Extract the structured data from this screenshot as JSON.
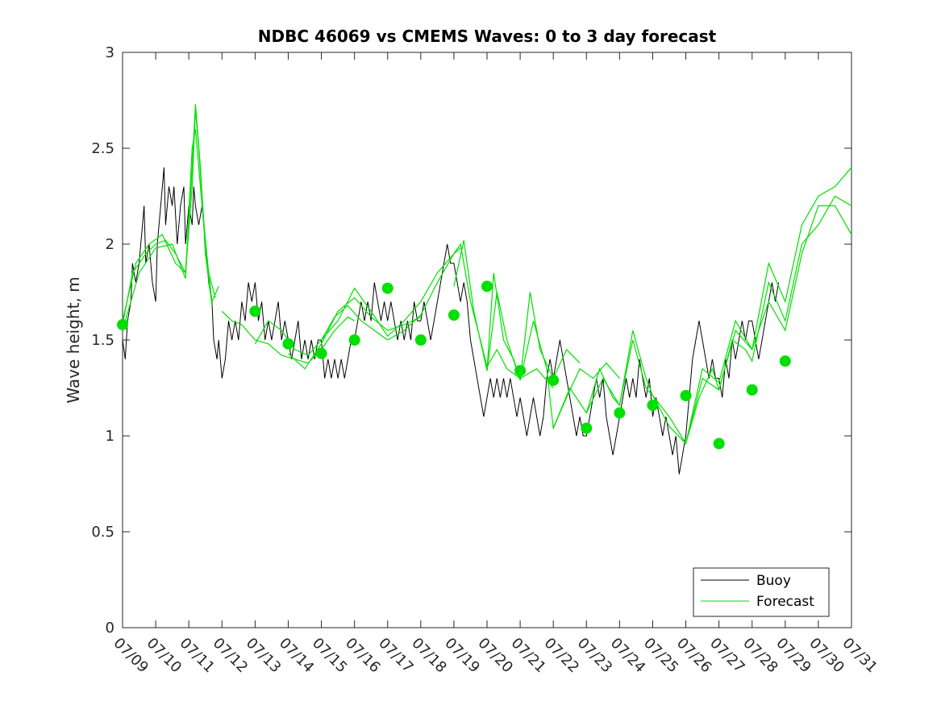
{
  "chart_data": {
    "type": "line",
    "title": "NDBC 46069 vs CMEMS Waves: 0 to 3 day forecast",
    "xlabel": "",
    "ylabel": "Wave height, m",
    "xlim": [
      0,
      22
    ],
    "ylim": [
      0,
      3
    ],
    "x_tick_labels": [
      "07/09",
      "07/10",
      "07/11",
      "07/12",
      "07/13",
      "07/14",
      "07/15",
      "07/16",
      "07/17",
      "07/18",
      "07/19",
      "07/20",
      "07/21",
      "07/22",
      "07/23",
      "07/24",
      "07/25",
      "07/26",
      "07/27",
      "07/28",
      "07/29",
      "07/30",
      "07/31"
    ],
    "y_ticks": [
      0,
      0.5,
      1,
      1.5,
      2,
      2.5,
      3
    ],
    "y_tick_labels": [
      "0",
      "0.5",
      "1",
      "1.5",
      "2",
      "2.5",
      "3"
    ],
    "grid": false,
    "legend": {
      "position": "bottom-right",
      "entries": [
        "Buoy",
        "Forecast"
      ]
    },
    "colors": {
      "buoy": "#000000",
      "forecast": "#00e000",
      "marker": "#00e000"
    },
    "buoy": [
      [
        0.0,
        1.5
      ],
      [
        0.08,
        1.4
      ],
      [
        0.15,
        1.6
      ],
      [
        0.25,
        1.7
      ],
      [
        0.3,
        1.9
      ],
      [
        0.4,
        1.8
      ],
      [
        0.5,
        1.9
      ],
      [
        0.6,
        2.1
      ],
      [
        0.65,
        2.2
      ],
      [
        0.7,
        1.9
      ],
      [
        0.8,
        2.0
      ],
      [
        0.9,
        1.8
      ],
      [
        1.0,
        1.7
      ],
      [
        1.05,
        2.0
      ],
      [
        1.15,
        2.2
      ],
      [
        1.25,
        2.4
      ],
      [
        1.3,
        2.1
      ],
      [
        1.4,
        2.3
      ],
      [
        1.5,
        2.2
      ],
      [
        1.55,
        2.3
      ],
      [
        1.65,
        2.0
      ],
      [
        1.75,
        2.2
      ],
      [
        1.85,
        2.3
      ],
      [
        1.9,
        2.0
      ],
      [
        2.0,
        2.2
      ],
      [
        2.1,
        2.1
      ],
      [
        2.15,
        2.3
      ],
      [
        2.2,
        2.2
      ],
      [
        2.3,
        2.1
      ],
      [
        2.4,
        2.2
      ],
      [
        2.5,
        2.0
      ],
      [
        2.6,
        1.8
      ],
      [
        2.7,
        1.7
      ],
      [
        2.75,
        1.5
      ],
      [
        2.85,
        1.4
      ],
      [
        2.9,
        1.5
      ],
      [
        3.0,
        1.3
      ],
      [
        3.1,
        1.4
      ],
      [
        3.2,
        1.6
      ],
      [
        3.3,
        1.5
      ],
      [
        3.4,
        1.6
      ],
      [
        3.5,
        1.5
      ],
      [
        3.6,
        1.7
      ],
      [
        3.7,
        1.6
      ],
      [
        3.8,
        1.8
      ],
      [
        3.9,
        1.7
      ],
      [
        4.0,
        1.8
      ],
      [
        4.1,
        1.6
      ],
      [
        4.2,
        1.7
      ],
      [
        4.3,
        1.5
      ],
      [
        4.4,
        1.6
      ],
      [
        4.5,
        1.5
      ],
      [
        4.6,
        1.6
      ],
      [
        4.7,
        1.7
      ],
      [
        4.8,
        1.5
      ],
      [
        4.9,
        1.6
      ],
      [
        5.0,
        1.5
      ],
      [
        5.1,
        1.4
      ],
      [
        5.2,
        1.5
      ],
      [
        5.3,
        1.6
      ],
      [
        5.4,
        1.4
      ],
      [
        5.5,
        1.5
      ],
      [
        5.6,
        1.4
      ],
      [
        5.7,
        1.5
      ],
      [
        5.8,
        1.4
      ],
      [
        5.9,
        1.5
      ],
      [
        6.0,
        1.5
      ],
      [
        6.1,
        1.3
      ],
      [
        6.2,
        1.4
      ],
      [
        6.3,
        1.3
      ],
      [
        6.4,
        1.4
      ],
      [
        6.5,
        1.3
      ],
      [
        6.6,
        1.4
      ],
      [
        6.7,
        1.3
      ],
      [
        6.8,
        1.4
      ],
      [
        6.9,
        1.5
      ],
      [
        7.0,
        1.5
      ],
      [
        7.1,
        1.6
      ],
      [
        7.2,
        1.7
      ],
      [
        7.3,
        1.6
      ],
      [
        7.4,
        1.7
      ],
      [
        7.5,
        1.6
      ],
      [
        7.6,
        1.8
      ],
      [
        7.7,
        1.7
      ],
      [
        7.8,
        1.6
      ],
      [
        7.9,
        1.7
      ],
      [
        8.0,
        1.6
      ],
      [
        8.1,
        1.7
      ],
      [
        8.2,
        1.6
      ],
      [
        8.3,
        1.5
      ],
      [
        8.4,
        1.6
      ],
      [
        8.5,
        1.5
      ],
      [
        8.6,
        1.6
      ],
      [
        8.7,
        1.5
      ],
      [
        8.8,
        1.7
      ],
      [
        8.9,
        1.6
      ],
      [
        9.0,
        1.6
      ],
      [
        9.1,
        1.7
      ],
      [
        9.2,
        1.6
      ],
      [
        9.3,
        1.5
      ],
      [
        9.4,
        1.6
      ],
      [
        9.5,
        1.7
      ],
      [
        9.6,
        1.8
      ],
      [
        9.7,
        1.9
      ],
      [
        9.8,
        2.0
      ],
      [
        9.9,
        1.9
      ],
      [
        10.0,
        1.9
      ],
      [
        10.1,
        1.8
      ],
      [
        10.2,
        1.7
      ],
      [
        10.3,
        1.8
      ],
      [
        10.4,
        1.7
      ],
      [
        10.5,
        1.5
      ],
      [
        10.6,
        1.4
      ],
      [
        10.7,
        1.3
      ],
      [
        10.8,
        1.2
      ],
      [
        10.9,
        1.1
      ],
      [
        11.0,
        1.2
      ],
      [
        11.1,
        1.3
      ],
      [
        11.2,
        1.2
      ],
      [
        11.3,
        1.3
      ],
      [
        11.4,
        1.2
      ],
      [
        11.5,
        1.3
      ],
      [
        11.6,
        1.2
      ],
      [
        11.7,
        1.3
      ],
      [
        11.8,
        1.2
      ],
      [
        11.9,
        1.1
      ],
      [
        12.0,
        1.2
      ],
      [
        12.1,
        1.1
      ],
      [
        12.2,
        1.0
      ],
      [
        12.3,
        1.1
      ],
      [
        12.4,
        1.2
      ],
      [
        12.5,
        1.1
      ],
      [
        12.6,
        1.0
      ],
      [
        12.7,
        1.1
      ],
      [
        12.8,
        1.3
      ],
      [
        12.9,
        1.4
      ],
      [
        13.0,
        1.3
      ],
      [
        13.1,
        1.4
      ],
      [
        13.2,
        1.5
      ],
      [
        13.3,
        1.4
      ],
      [
        13.4,
        1.3
      ],
      [
        13.5,
        1.2
      ],
      [
        13.6,
        1.1
      ],
      [
        13.7,
        1.0
      ],
      [
        13.8,
        1.1
      ],
      [
        13.9,
        1.0
      ],
      [
        14.0,
        1.0
      ],
      [
        14.1,
        1.1
      ],
      [
        14.2,
        1.2
      ],
      [
        14.3,
        1.3
      ],
      [
        14.4,
        1.2
      ],
      [
        14.5,
        1.3
      ],
      [
        14.6,
        1.1
      ],
      [
        14.7,
        1.0
      ],
      [
        14.8,
        0.9
      ],
      [
        14.9,
        1.0
      ],
      [
        15.0,
        1.1
      ],
      [
        15.1,
        1.2
      ],
      [
        15.2,
        1.3
      ],
      [
        15.3,
        1.2
      ],
      [
        15.4,
        1.3
      ],
      [
        15.5,
        1.2
      ],
      [
        15.6,
        1.4
      ],
      [
        15.7,
        1.3
      ],
      [
        15.8,
        1.2
      ],
      [
        15.9,
        1.3
      ],
      [
        16.0,
        1.1
      ],
      [
        16.1,
        1.2
      ],
      [
        16.2,
        1.1
      ],
      [
        16.3,
        1.0
      ],
      [
        16.4,
        1.1
      ],
      [
        16.5,
        1.0
      ],
      [
        16.6,
        0.9
      ],
      [
        16.7,
        1.0
      ],
      [
        16.8,
        0.8
      ],
      [
        16.9,
        0.9
      ],
      [
        17.0,
        1.0
      ],
      [
        17.1,
        1.2
      ],
      [
        17.2,
        1.4
      ],
      [
        17.3,
        1.5
      ],
      [
        17.4,
        1.6
      ],
      [
        17.5,
        1.5
      ],
      [
        17.6,
        1.4
      ],
      [
        17.7,
        1.3
      ],
      [
        17.8,
        1.4
      ],
      [
        17.9,
        1.3
      ],
      [
        18.0,
        1.3
      ],
      [
        18.1,
        1.2
      ],
      [
        18.2,
        1.4
      ],
      [
        18.3,
        1.3
      ],
      [
        18.4,
        1.5
      ],
      [
        18.5,
        1.4
      ],
      [
        18.6,
        1.5
      ],
      [
        18.7,
        1.6
      ],
      [
        18.8,
        1.5
      ],
      [
        18.9,
        1.6
      ],
      [
        19.0,
        1.6
      ],
      [
        19.1,
        1.5
      ],
      [
        19.2,
        1.4
      ],
      [
        19.3,
        1.5
      ],
      [
        19.4,
        1.6
      ],
      [
        19.5,
        1.7
      ],
      [
        19.6,
        1.8
      ],
      [
        19.7,
        1.7
      ],
      [
        19.8,
        1.8
      ]
    ],
    "forecast_series": [
      [
        [
          0.0,
          1.58
        ],
        [
          0.3,
          1.85
        ],
        [
          0.7,
          1.95
        ],
        [
          1.0,
          2.0
        ],
        [
          1.3,
          2.02
        ],
        [
          1.6,
          1.95
        ],
        [
          1.9,
          1.85
        ],
        [
          2.1,
          2.3
        ],
        [
          2.2,
          2.7
        ],
        [
          2.3,
          2.5
        ],
        [
          2.5,
          2.0
        ],
        [
          2.7,
          1.7
        ],
        [
          2.9,
          1.78
        ]
      ],
      [
        [
          0.0,
          1.6
        ],
        [
          0.4,
          1.9
        ],
        [
          0.8,
          2.0
        ],
        [
          1.2,
          2.05
        ],
        [
          1.6,
          1.9
        ],
        [
          1.9,
          1.85
        ],
        [
          2.1,
          2.4
        ],
        [
          2.2,
          2.73
        ],
        [
          2.35,
          2.4
        ],
        [
          2.5,
          1.95
        ],
        [
          2.7,
          1.68
        ]
      ],
      [
        [
          0.0,
          1.55
        ],
        [
          0.5,
          1.85
        ],
        [
          1.0,
          1.98
        ],
        [
          1.5,
          2.0
        ],
        [
          1.9,
          1.82
        ],
        [
          2.1,
          2.5
        ],
        [
          2.2,
          2.6
        ],
        [
          2.4,
          2.2
        ],
        [
          2.6,
          1.85
        ],
        [
          2.8,
          1.72
        ]
      ],
      [
        [
          3.0,
          1.65
        ],
        [
          3.3,
          1.6
        ],
        [
          3.6,
          1.58
        ],
        [
          4.0,
          1.5
        ],
        [
          4.4,
          1.48
        ],
        [
          4.8,
          1.42
        ],
        [
          5.2,
          1.4
        ],
        [
          5.6,
          1.38
        ],
        [
          6.0,
          1.45
        ],
        [
          6.4,
          1.55
        ],
        [
          6.8,
          1.62
        ],
        [
          7.0,
          1.6
        ]
      ],
      [
        [
          4.0,
          1.48
        ],
        [
          4.4,
          1.6
        ],
        [
          4.8,
          1.55
        ],
        [
          5.2,
          1.45
        ],
        [
          5.6,
          1.42
        ],
        [
          6.0,
          1.5
        ],
        [
          6.4,
          1.62
        ],
        [
          6.8,
          1.68
        ],
        [
          7.2,
          1.6
        ],
        [
          7.6,
          1.55
        ],
        [
          8.0,
          1.5
        ]
      ],
      [
        [
          5.0,
          1.43
        ],
        [
          5.5,
          1.35
        ],
        [
          6.0,
          1.48
        ],
        [
          6.5,
          1.65
        ],
        [
          7.0,
          1.72
        ],
        [
          7.5,
          1.62
        ],
        [
          8.0,
          1.55
        ],
        [
          8.5,
          1.58
        ],
        [
          9.0,
          1.62
        ]
      ],
      [
        [
          6.0,
          1.5
        ],
        [
          6.5,
          1.6
        ],
        [
          7.0,
          1.77
        ],
        [
          7.5,
          1.65
        ],
        [
          8.0,
          1.52
        ],
        [
          8.5,
          1.6
        ],
        [
          9.0,
          1.7
        ],
        [
          9.5,
          1.85
        ],
        [
          10.0,
          1.95
        ],
        [
          10.2,
          1.98
        ]
      ],
      [
        [
          8.0,
          1.5
        ],
        [
          8.5,
          1.55
        ],
        [
          9.0,
          1.63
        ],
        [
          9.5,
          1.8
        ],
        [
          10.0,
          1.95
        ],
        [
          10.2,
          2.0
        ],
        [
          10.5,
          1.7
        ],
        [
          10.8,
          1.5
        ],
        [
          11.0,
          1.36
        ],
        [
          11.3,
          1.45
        ],
        [
          11.6,
          1.35
        ],
        [
          12.0,
          1.3
        ]
      ],
      [
        [
          10.0,
          1.78
        ],
        [
          10.3,
          2.02
        ],
        [
          10.6,
          1.65
        ],
        [
          11.0,
          1.34
        ],
        [
          11.2,
          1.85
        ],
        [
          11.5,
          1.5
        ],
        [
          11.8,
          1.4
        ],
        [
          12.0,
          1.3
        ],
        [
          12.5,
          1.35
        ],
        [
          13.0,
          1.25
        ]
      ],
      [
        [
          11.0,
          1.34
        ],
        [
          11.3,
          1.75
        ],
        [
          11.6,
          1.5
        ],
        [
          12.0,
          1.29
        ],
        [
          12.3,
          1.75
        ],
        [
          12.6,
          1.45
        ],
        [
          13.0,
          1.3
        ],
        [
          13.4,
          1.45
        ],
        [
          13.8,
          1.38
        ]
      ],
      [
        [
          12.0,
          1.29
        ],
        [
          12.4,
          1.6
        ],
        [
          12.8,
          1.35
        ],
        [
          13.0,
          1.04
        ],
        [
          13.4,
          1.2
        ],
        [
          13.8,
          1.35
        ],
        [
          14.2,
          1.3
        ],
        [
          14.6,
          1.38
        ],
        [
          15.0,
          1.3
        ]
      ],
      [
        [
          13.0,
          1.04
        ],
        [
          13.5,
          1.25
        ],
        [
          14.0,
          1.12
        ],
        [
          14.4,
          1.35
        ],
        [
          14.8,
          1.2
        ],
        [
          15.0,
          1.16
        ],
        [
          15.4,
          1.55
        ],
        [
          15.8,
          1.3
        ],
        [
          16.0,
          1.21
        ]
      ],
      [
        [
          14.0,
          1.12
        ],
        [
          14.5,
          1.3
        ],
        [
          15.0,
          1.16
        ],
        [
          15.4,
          1.5
        ],
        [
          15.8,
          1.25
        ],
        [
          16.0,
          1.21
        ],
        [
          16.5,
          1.05
        ],
        [
          17.0,
          0.96
        ],
        [
          17.4,
          1.2
        ],
        [
          17.8,
          1.35
        ],
        [
          18.0,
          1.24
        ]
      ],
      [
        [
          16.0,
          1.21
        ],
        [
          16.5,
          1.1
        ],
        [
          17.0,
          0.96
        ],
        [
          17.5,
          1.3
        ],
        [
          18.0,
          1.24
        ],
        [
          18.4,
          1.5
        ],
        [
          18.8,
          1.45
        ],
        [
          19.0,
          1.39
        ],
        [
          19.5,
          1.8
        ],
        [
          20.0,
          1.6
        ],
        [
          20.5,
          2.0
        ],
        [
          21.0,
          2.1
        ],
        [
          21.5,
          2.25
        ],
        [
          22.0,
          2.2
        ]
      ],
      [
        [
          17.0,
          0.96
        ],
        [
          17.5,
          1.35
        ],
        [
          18.0,
          1.28
        ],
        [
          18.5,
          1.6
        ],
        [
          19.0,
          1.45
        ],
        [
          19.5,
          1.9
        ],
        [
          20.0,
          1.7
        ],
        [
          20.5,
          2.1
        ],
        [
          21.0,
          2.25
        ],
        [
          21.5,
          2.3
        ],
        [
          22.0,
          2.4
        ]
      ],
      [
        [
          18.0,
          1.24
        ],
        [
          18.5,
          1.55
        ],
        [
          19.0,
          1.45
        ],
        [
          19.5,
          1.7
        ],
        [
          20.0,
          1.55
        ],
        [
          20.5,
          1.95
        ],
        [
          21.0,
          2.2
        ],
        [
          21.5,
          2.2
        ],
        [
          22.0,
          2.05
        ]
      ]
    ],
    "markers": [
      [
        0,
        1.58
      ],
      [
        4,
        1.65
      ],
      [
        5,
        1.48
      ],
      [
        6,
        1.43
      ],
      [
        7,
        1.5
      ],
      [
        8,
        1.77
      ],
      [
        9,
        1.5
      ],
      [
        10,
        1.63
      ],
      [
        11,
        1.78
      ],
      [
        12,
        1.34
      ],
      [
        13,
        1.29
      ],
      [
        14,
        1.04
      ],
      [
        15,
        1.12
      ],
      [
        16,
        1.16
      ],
      [
        17,
        1.21
      ],
      [
        18,
        0.96
      ],
      [
        19,
        1.24
      ],
      [
        20,
        1.39
      ]
    ]
  }
}
